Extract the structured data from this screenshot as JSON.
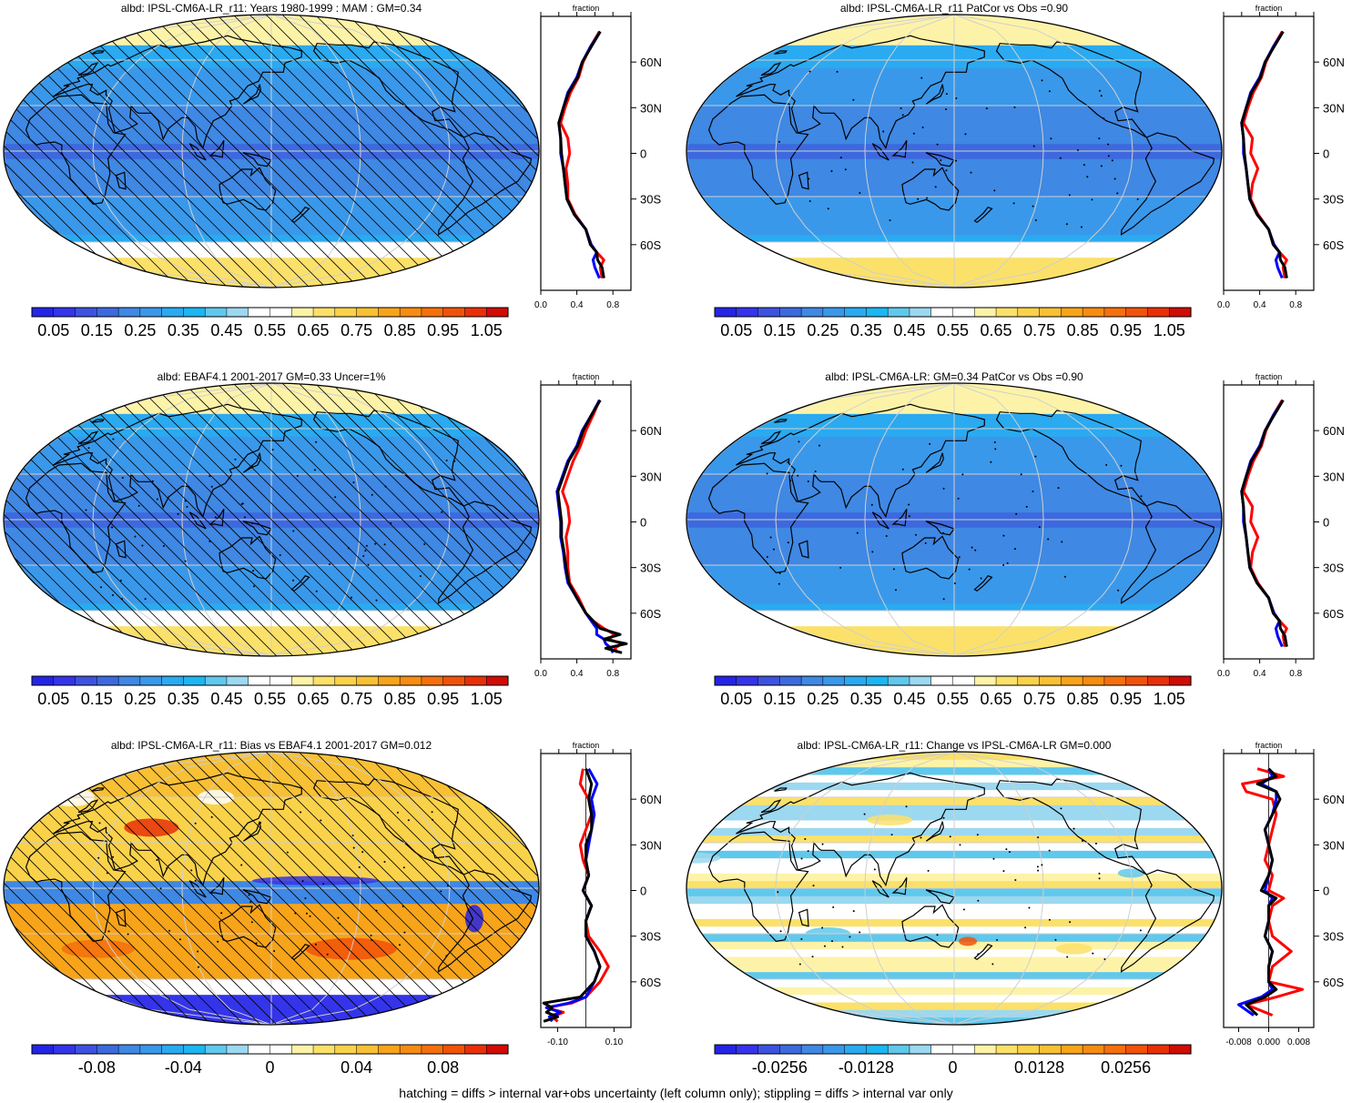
{
  "footer": "hatching = diffs > internal var+obs uncertainty (left column only); stippling = diffs > internal var only",
  "colors": {
    "land_outline": "#000000",
    "graticule": "#cfcfcf",
    "profile_obs": "#ff0000",
    "profile_ref": "#0000ff",
    "profile_model": "#000000"
  },
  "palettes": {
    "albedo": [
      "#2424e6",
      "#3434ea",
      "#3e52e0",
      "#3c6ade",
      "#3f88e4",
      "#3a98ea",
      "#2aaaf0",
      "#1cb6f2",
      "#60c8ec",
      "#9cd8ef",
      "#ffffff",
      "#ffffff",
      "#fdf3a8",
      "#fbe16a",
      "#fad24a",
      "#f8c034",
      "#f7a41a",
      "#f78c12",
      "#f5700c",
      "#f1520a",
      "#e83008",
      "#d00c04"
    ],
    "diverging": [
      "#2424e6",
      "#3434ea",
      "#3e52e0",
      "#3c6ade",
      "#3f88e4",
      "#3a98ea",
      "#2aaaf0",
      "#1cb6f2",
      "#60c8ec",
      "#9cd8ef",
      "#ffffff",
      "#ffffff",
      "#fdf3a8",
      "#fbe16a",
      "#fad24a",
      "#f8c034",
      "#f7a41a",
      "#f78c12",
      "#f5700c",
      "#f1520a",
      "#e83008",
      "#d00c04"
    ]
  },
  "chart_data": [
    {
      "type": "heatmap",
      "title": "albd: IPSL-CM6A-LR_r11: Years 1980-1999 : MAM : GM=0.34",
      "palette": "albedo",
      "hatched": true,
      "stippled": false,
      "colorbar": {
        "tick_labels": [
          "0.05",
          "0.15",
          "0.25",
          "0.35",
          "0.45",
          "0.55",
          "0.65",
          "0.75",
          "0.85",
          "0.95",
          "1.05"
        ]
      },
      "profile": {
        "xlabel": "fraction",
        "xlim": [
          0,
          1.0
        ],
        "xticks": [
          "0.0",
          "0.4",
          "0.8"
        ],
        "ylim": [
          -90,
          90
        ],
        "yticks": [
          "60N",
          "30N",
          "0",
          "30S",
          "60S"
        ],
        "zero_line": false,
        "lat": [
          -82,
          -75,
          -70,
          -65,
          -60,
          -50,
          -40,
          -30,
          -20,
          -10,
          0,
          10,
          20,
          30,
          40,
          50,
          60,
          70,
          80
        ],
        "series": [
          {
            "color": "red",
            "values": [
              0.68,
              0.66,
              0.7,
              0.62,
              0.55,
              0.5,
              0.38,
              0.3,
              0.3,
              0.28,
              0.32,
              0.3,
              0.22,
              0.27,
              0.33,
              0.42,
              0.47,
              0.55,
              0.65
            ]
          },
          {
            "color": "blue",
            "values": [
              0.65,
              0.6,
              0.58,
              0.62,
              0.56,
              0.5,
              0.37,
              0.29,
              0.27,
              0.25,
              0.22,
              0.22,
              0.2,
              0.25,
              0.3,
              0.4,
              0.46,
              0.55,
              0.66
            ]
          },
          {
            "color": "black",
            "values": [
              0.7,
              0.68,
              0.63,
              0.62,
              0.55,
              0.5,
              0.37,
              0.29,
              0.27,
              0.25,
              0.23,
              0.22,
              0.2,
              0.25,
              0.31,
              0.41,
              0.46,
              0.56,
              0.66
            ]
          }
        ]
      }
    },
    {
      "type": "heatmap",
      "title": "albd: IPSL-CM6A-LR_r11 PatCor vs Obs =0.90",
      "palette": "albedo",
      "hatched": false,
      "stippled": true,
      "colorbar": {
        "tick_labels": [
          "0.05",
          "0.15",
          "0.25",
          "0.35",
          "0.45",
          "0.55",
          "0.65",
          "0.75",
          "0.85",
          "0.95",
          "1.05"
        ]
      },
      "profile": {
        "xlabel": "fraction",
        "xlim": [
          0,
          1.0
        ],
        "xticks": [
          "0.0",
          "0.4",
          "0.8"
        ],
        "ylim": [
          -90,
          90
        ],
        "yticks": [
          "60N",
          "30N",
          "0",
          "30S",
          "60S"
        ],
        "zero_line": false,
        "lat": [
          -82,
          -75,
          -70,
          -65,
          -60,
          -50,
          -40,
          -30,
          -20,
          -10,
          0,
          10,
          20,
          30,
          40,
          50,
          60,
          70,
          80
        ],
        "series": [
          {
            "color": "red",
            "values": [
              0.68,
              0.66,
              0.7,
              0.62,
              0.55,
              0.5,
              0.38,
              0.3,
              0.32,
              0.38,
              0.3,
              0.32,
              0.22,
              0.27,
              0.33,
              0.42,
              0.47,
              0.55,
              0.65
            ]
          },
          {
            "color": "blue",
            "values": [
              0.65,
              0.6,
              0.58,
              0.62,
              0.56,
              0.5,
              0.37,
              0.29,
              0.27,
              0.25,
              0.22,
              0.22,
              0.2,
              0.25,
              0.3,
              0.4,
              0.46,
              0.55,
              0.66
            ]
          },
          {
            "color": "black",
            "values": [
              0.7,
              0.68,
              0.63,
              0.62,
              0.55,
              0.5,
              0.37,
              0.29,
              0.27,
              0.25,
              0.23,
              0.22,
              0.2,
              0.25,
              0.31,
              0.41,
              0.46,
              0.56,
              0.66
            ]
          }
        ]
      }
    },
    {
      "type": "heatmap",
      "title": "albd: EBAF4.1 2001-2017 GM=0.33 Uncer=1%",
      "palette": "albedo",
      "hatched": true,
      "stippled": true,
      "colorbar": {
        "tick_labels": [
          "0.05",
          "0.15",
          "0.25",
          "0.35",
          "0.45",
          "0.55",
          "0.65",
          "0.75",
          "0.85",
          "0.95",
          "1.05"
        ]
      },
      "profile": {
        "xlabel": "fraction",
        "xlim": [
          0,
          1.0
        ],
        "xticks": [
          "0.0",
          "0.4",
          "0.8"
        ],
        "ylim": [
          -90,
          90
        ],
        "yticks": [
          "60N",
          "30N",
          "0",
          "30S",
          "60S"
        ],
        "zero_line": false,
        "lat": [
          -86,
          -83,
          -80,
          -77,
          -74,
          -70,
          -65,
          -60,
          -50,
          -40,
          -30,
          -20,
          -10,
          0,
          10,
          20,
          30,
          40,
          50,
          60,
          70,
          80
        ],
        "series": [
          {
            "color": "red",
            "values": [
              0.85,
              0.82,
              0.9,
              0.75,
              0.82,
              0.7,
              0.58,
              0.5,
              0.42,
              0.32,
              0.3,
              0.3,
              0.28,
              0.32,
              0.3,
              0.24,
              0.3,
              0.36,
              0.44,
              0.5,
              0.58,
              0.65
            ]
          },
          {
            "color": "blue",
            "values": [
              0.8,
              0.78,
              0.72,
              0.7,
              0.62,
              0.62,
              0.56,
              0.5,
              0.4,
              0.3,
              0.27,
              0.25,
              0.22,
              0.22,
              0.2,
              0.18,
              0.24,
              0.3,
              0.4,
              0.46,
              0.56,
              0.65
            ]
          },
          {
            "color": "black",
            "values": [
              0.9,
              0.72,
              0.95,
              0.7,
              0.88,
              0.66,
              0.58,
              0.5,
              0.4,
              0.31,
              0.28,
              0.26,
              0.23,
              0.23,
              0.21,
              0.19,
              0.25,
              0.31,
              0.41,
              0.47,
              0.56,
              0.66
            ]
          }
        ]
      }
    },
    {
      "type": "heatmap",
      "title": "albd: IPSL-CM6A-LR: GM=0.34 PatCor vs Obs =0.90",
      "palette": "albedo",
      "hatched": false,
      "stippled": true,
      "colorbar": {
        "tick_labels": [
          "0.05",
          "0.15",
          "0.25",
          "0.35",
          "0.45",
          "0.55",
          "0.65",
          "0.75",
          "0.85",
          "0.95",
          "1.05"
        ]
      },
      "profile": {
        "xlabel": "fraction",
        "xlim": [
          0,
          1.0
        ],
        "xticks": [
          "0.0",
          "0.4",
          "0.8"
        ],
        "ylim": [
          -90,
          90
        ],
        "yticks": [
          "60N",
          "30N",
          "0",
          "30S",
          "60S"
        ],
        "zero_line": false,
        "lat": [
          -82,
          -75,
          -70,
          -65,
          -60,
          -50,
          -40,
          -30,
          -20,
          -10,
          0,
          10,
          20,
          30,
          40,
          50,
          60,
          70,
          80
        ],
        "series": [
          {
            "color": "red",
            "values": [
              0.68,
              0.66,
              0.7,
              0.62,
              0.55,
              0.5,
              0.38,
              0.3,
              0.32,
              0.38,
              0.3,
              0.32,
              0.22,
              0.27,
              0.33,
              0.42,
              0.47,
              0.55,
              0.65
            ]
          },
          {
            "color": "blue",
            "values": [
              0.65,
              0.6,
              0.58,
              0.62,
              0.56,
              0.5,
              0.37,
              0.29,
              0.27,
              0.25,
              0.22,
              0.22,
              0.2,
              0.25,
              0.3,
              0.4,
              0.46,
              0.55,
              0.66
            ]
          },
          {
            "color": "black",
            "values": [
              0.7,
              0.68,
              0.63,
              0.62,
              0.55,
              0.5,
              0.37,
              0.29,
              0.27,
              0.25,
              0.23,
              0.22,
              0.2,
              0.25,
              0.31,
              0.41,
              0.46,
              0.56,
              0.66
            ]
          }
        ]
      }
    },
    {
      "type": "heatmap",
      "title": "albd: IPSL-CM6A-LR_r11: Bias vs EBAF4.1 2001-2017 GM=0.012",
      "palette": "diverging",
      "hatched": true,
      "stippled": true,
      "colorbar": {
        "tick_labels": [
          "-0.08",
          "-0.04",
          "0",
          "0.04",
          "0.08"
        ]
      },
      "profile": {
        "xlabel": "fraction",
        "xlim": [
          -0.16,
          0.16
        ],
        "xticks": [
          "-0.10",
          "0.10"
        ],
        "ylim": [
          -90,
          90
        ],
        "yticks": [
          "60N",
          "30N",
          "0",
          "30S",
          "60S"
        ],
        "zero_line": true,
        "lat": [
          -86,
          -83,
          -80,
          -77,
          -74,
          -70,
          -60,
          -50,
          -40,
          -30,
          -20,
          -10,
          0,
          10,
          20,
          30,
          40,
          50,
          60,
          70,
          80
        ],
        "series": [
          {
            "color": "red",
            "values": [
              -0.1,
              -0.12,
              -0.08,
              -0.14,
              -0.05,
              0.0,
              0.05,
              0.08,
              0.05,
              0.01,
              0.0,
              0.02,
              -0.01,
              0.01,
              -0.01,
              -0.02,
              0.0,
              0.02,
              0.01,
              -0.02,
              -0.01
            ]
          },
          {
            "color": "blue",
            "values": [
              -0.12,
              -0.13,
              -0.09,
              -0.14,
              -0.06,
              0.0,
              0.03,
              0.05,
              0.03,
              0.0,
              0.0,
              0.02,
              -0.01,
              0.01,
              0.0,
              0.01,
              0.02,
              0.03,
              0.02,
              0.04,
              0.01
            ]
          },
          {
            "color": "black",
            "values": [
              -0.15,
              -0.1,
              -0.14,
              -0.12,
              -0.15,
              -0.02,
              0.03,
              0.05,
              0.03,
              0.0,
              0.0,
              0.02,
              -0.01,
              0.01,
              0.0,
              0.0,
              0.02,
              0.02,
              0.01,
              0.02,
              0.0
            ]
          }
        ]
      }
    },
    {
      "type": "heatmap",
      "title": "albd: IPSL-CM6A-LR_r11: Change vs IPSL-CM6A-LR GM=0.000",
      "palette": "diverging",
      "hatched": false,
      "stippled": true,
      "colorbar": {
        "tick_labels": [
          "-0.0256",
          "-0.0128",
          "0",
          "0.0128",
          "0.0256"
        ]
      },
      "profile": {
        "xlabel": "fraction",
        "xlim": [
          -0.012,
          0.012
        ],
        "xticks": [
          "-0.008",
          "0.000",
          "0.008"
        ],
        "ylim": [
          -90,
          90
        ],
        "yticks": [
          "60N",
          "30N",
          "0",
          "30S",
          "60S"
        ],
        "zero_line": true,
        "lat": [
          -82,
          -75,
          -70,
          -65,
          -60,
          -50,
          -40,
          -30,
          -20,
          -10,
          -5,
          0,
          10,
          20,
          30,
          40,
          50,
          60,
          65,
          70,
          75,
          80
        ],
        "series": [
          {
            "color": "red",
            "values": [
              0.001,
              -0.006,
              0.002,
              0.009,
              0.0,
              0.001,
              0.006,
              0.001,
              0.0,
              0.001,
              0.004,
              0.0,
              0.001,
              -0.001,
              0.0,
              0.001,
              0.002,
              0.001,
              -0.006,
              -0.007,
              0.004,
              -0.003
            ]
          },
          {
            "color": "blue",
            "values": [
              -0.004,
              -0.008,
              -0.002,
              0.001,
              0.0,
              0.0,
              0.001,
              -0.001,
              0.0,
              0.0,
              0.001,
              -0.001,
              0.0,
              0.001,
              0.0,
              -0.001,
              0.001,
              0.002,
              0.002,
              -0.002,
              0.001,
              0.0
            ]
          },
          {
            "color": "black",
            "values": [
              -0.003,
              -0.006,
              -0.001,
              0.002,
              0.0,
              0.0,
              0.001,
              -0.001,
              0.0,
              0.0,
              0.002,
              -0.002,
              0.0,
              0.001,
              0.0,
              -0.001,
              0.001,
              0.003,
              0.002,
              -0.003,
              0.002,
              0.0
            ]
          }
        ]
      }
    }
  ]
}
